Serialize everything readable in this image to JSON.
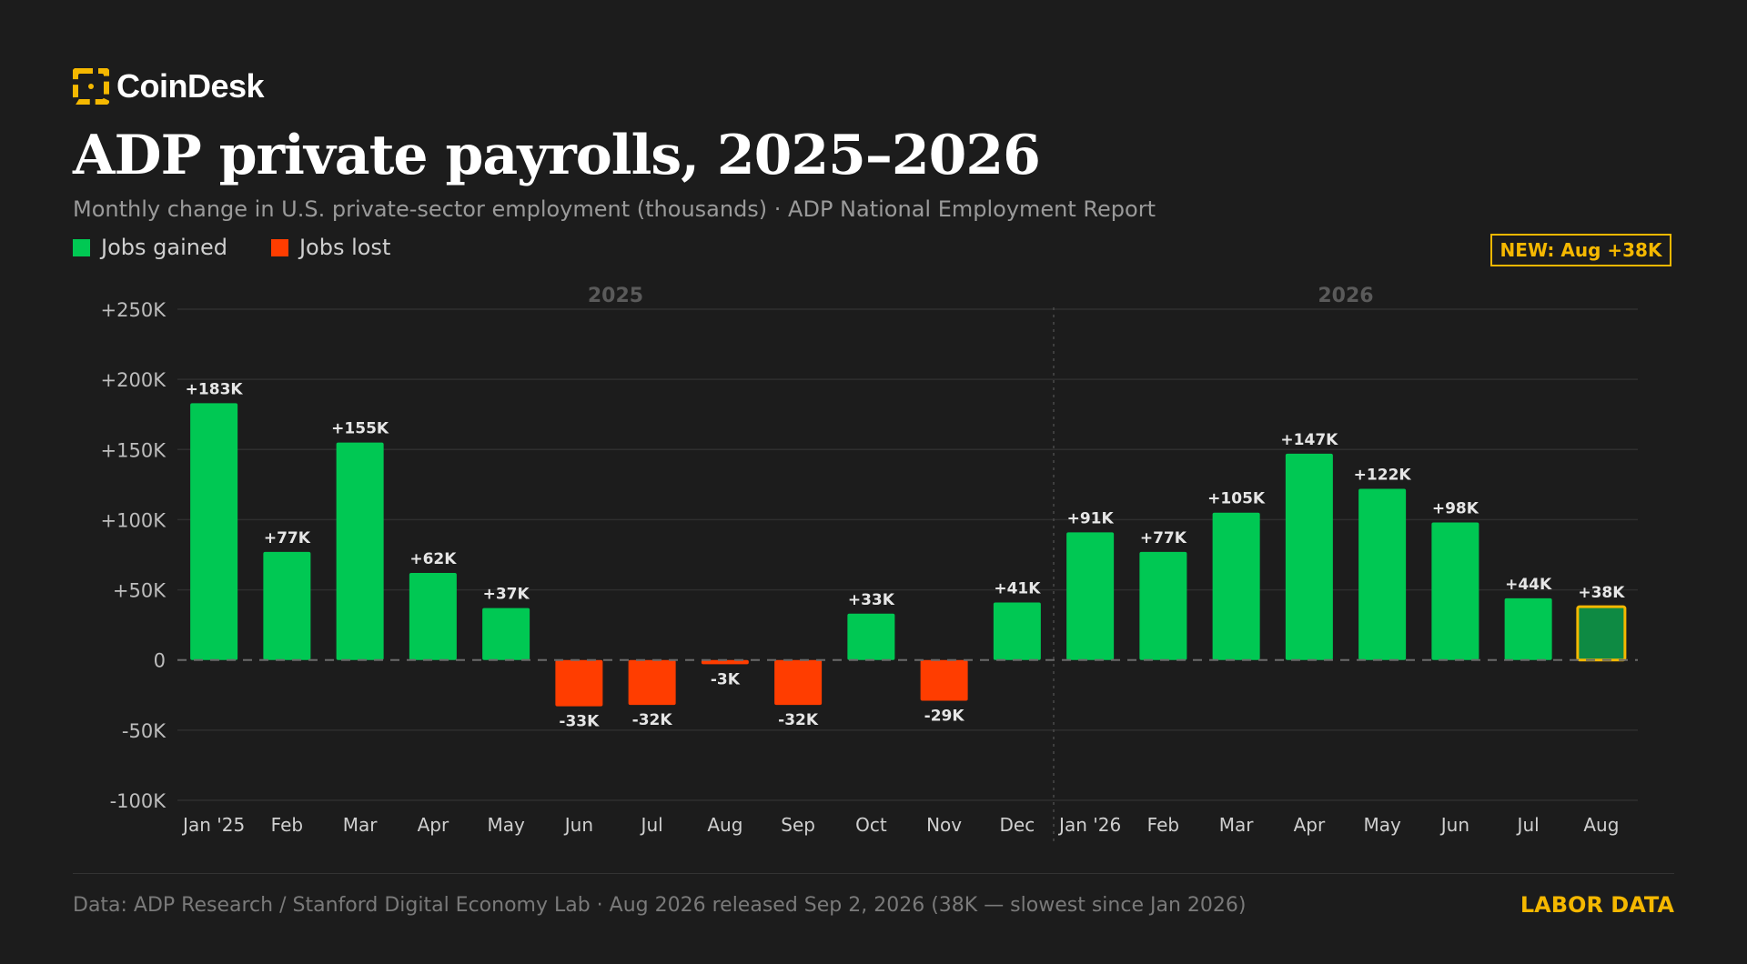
{
  "brand": {
    "name": "CoinDesk"
  },
  "header": {
    "title": "ADP private payrolls, 2025–2026",
    "subtitle": "Monthly change in U.S. private-sector employment (thousands) · ADP National Employment Report"
  },
  "legend": {
    "gained_label": "Jobs gained",
    "lost_label": "Jobs lost"
  },
  "badge": {
    "text": "NEW: Aug +38K"
  },
  "colors": {
    "gained": "#00c853",
    "lost": "#ff3d00",
    "highlight_fill": "#0e8a43",
    "highlight_stroke": "#f5b800",
    "accent": "#f5b800",
    "background": "#1c1c1c"
  },
  "chart_data": {
    "type": "bar",
    "categories": [
      "Jan '25",
      "Feb",
      "Mar",
      "Apr",
      "May",
      "Jun",
      "Jul",
      "Aug",
      "Sep",
      "Oct",
      "Nov",
      "Dec",
      "Jan '26",
      "Feb",
      "Mar",
      "Apr",
      "May",
      "Jun",
      "Jul",
      "Aug"
    ],
    "values": [
      183,
      77,
      155,
      62,
      37,
      -33,
      -32,
      -3,
      -32,
      33,
      -29,
      41,
      91,
      77,
      105,
      147,
      122,
      98,
      44,
      38
    ],
    "value_labels": [
      "+183K",
      "+77K",
      "+155K",
      "+62K",
      "+37K",
      "-33K",
      "-32K",
      "-3K",
      "-32K",
      "+33K",
      "-29K",
      "+41K",
      "+91K",
      "+77K",
      "+105K",
      "+147K",
      "+122K",
      "+98K",
      "+44K",
      "+38K"
    ],
    "highlight_index": 19,
    "ylim": [
      -100,
      250
    ],
    "yticks": [
      -100,
      -50,
      0,
      50,
      100,
      150,
      200,
      250
    ],
    "ytick_labels": [
      "-100K",
      "-50K",
      "0",
      "+50K",
      "+100K",
      "+150K",
      "+200K",
      "+250K"
    ],
    "groups": [
      {
        "label": "2025",
        "start": 0,
        "end": 11
      },
      {
        "label": "2026",
        "start": 12,
        "end": 19
      }
    ],
    "grid": true,
    "legend_position": "top-left",
    "xlabel": "",
    "ylabel": ""
  },
  "footer": {
    "note": "Data: ADP Research / Stanford Digital Economy Lab · Aug 2026 released Sep 2, 2026 (38K — slowest since Jan 2026)",
    "tag": "LABOR DATA"
  }
}
